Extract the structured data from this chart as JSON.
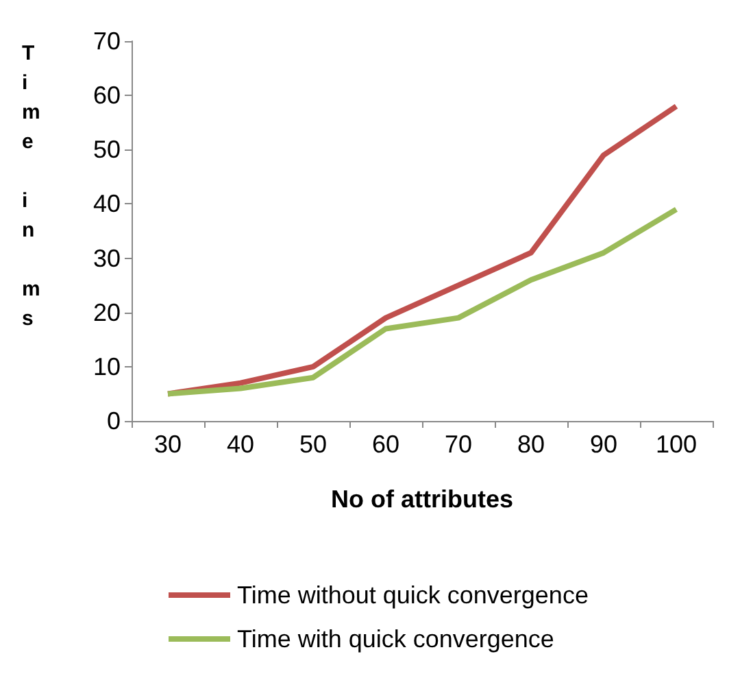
{
  "chart_data": {
    "type": "line",
    "xlabel": "No of attributes",
    "ylabel": "Time in ms",
    "categories": [
      "30",
      "40",
      "50",
      "60",
      "70",
      "80",
      "90",
      "100"
    ],
    "series": [
      {
        "name": "Time without quick convergence",
        "color": "#c0504d",
        "values": [
          5,
          7,
          10,
          19,
          25,
          31,
          49,
          58
        ]
      },
      {
        "name": "Time with quick convergence",
        "color": "#9bbb59",
        "values": [
          5,
          6,
          8,
          17,
          19,
          26,
          31,
          39
        ]
      }
    ],
    "ylim": [
      0,
      70
    ],
    "yticks": [
      0,
      10,
      20,
      30,
      40,
      50,
      60,
      70
    ],
    "grid": false,
    "legend": "bottom",
    "marker": "none",
    "line_style": "solid"
  }
}
